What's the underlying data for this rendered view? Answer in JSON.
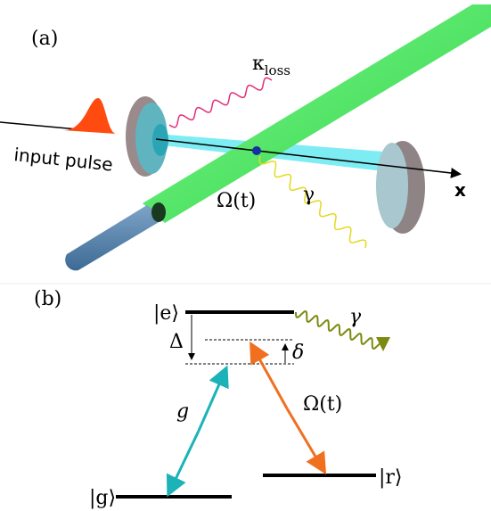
{
  "panel_a": {
    "label": "(a)",
    "kappa_label": {
      "symbol": "κ",
      "subscript": "loss"
    },
    "input_label": "input pulse",
    "axis_label": "x",
    "drive_label": "Ω(t)",
    "decay_label": "γ"
  },
  "panel_b": {
    "label": "(b)",
    "excited_state": "|e⟩",
    "detuning_large": "Δ",
    "detuning_small": "δ",
    "decay_label": "γ",
    "coupling_label": "g",
    "drive_label": "Ω(t)",
    "ground_state": "|g⟩",
    "rydberg_state": "|r⟩"
  }
}
